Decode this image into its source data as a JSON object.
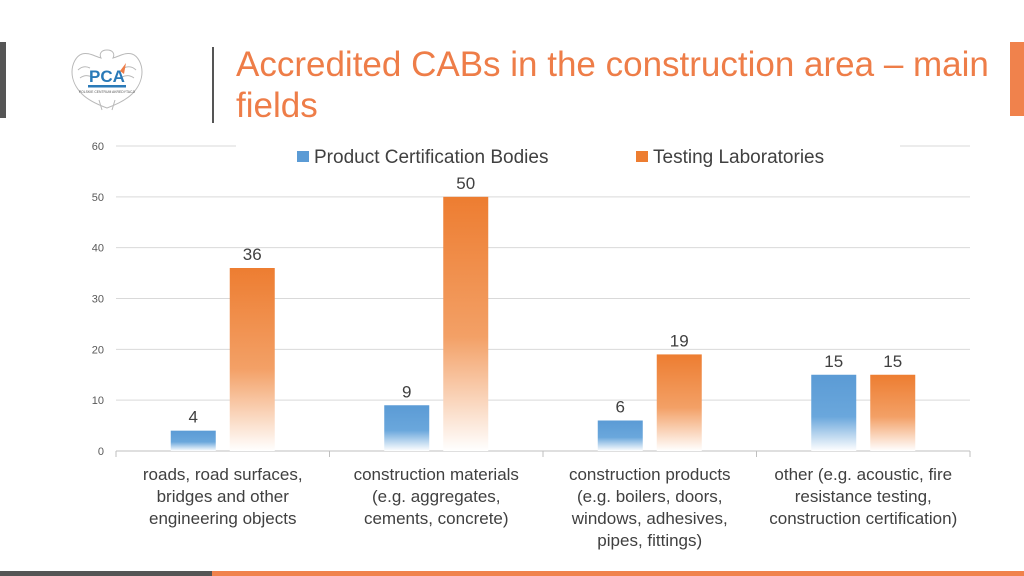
{
  "slide": {
    "title": "Accredited CABs in the construction area – main fields",
    "logo_text": "PCA",
    "logo_subtitle": "POLSKIE CENTRUM AKREDYTACJI"
  },
  "colors": {
    "accent": "#ee7d48",
    "series_blue": "#5b9bd5",
    "series_orange": "#ed7d31",
    "dark": "#555555"
  },
  "chart_data": {
    "type": "bar",
    "categories": [
      [
        "roads, road surfaces,",
        "bridges and other",
        "engineering objects"
      ],
      [
        "construction materials",
        "(e.g. aggregates,",
        "cements, concrete)"
      ],
      [
        "construction products",
        "(e.g. boilers, doors,",
        "windows, adhesives,",
        "pipes, fittings)"
      ],
      [
        "other (e.g. acoustic, fire",
        "resistance testing,",
        "construction certification)"
      ]
    ],
    "series": [
      {
        "name": "Product Certification Bodies",
        "values": [
          4,
          9,
          6,
          15
        ],
        "color": "#5b9bd5"
      },
      {
        "name": "Testing Laboratories",
        "values": [
          36,
          50,
          19,
          15
        ],
        "color": "#ed7d31"
      }
    ],
    "ylim": [
      0,
      60
    ],
    "yticks": [
      0,
      10,
      20,
      30,
      40,
      50,
      60
    ],
    "grid": true,
    "legend": "top-center",
    "data_labels": true
  }
}
